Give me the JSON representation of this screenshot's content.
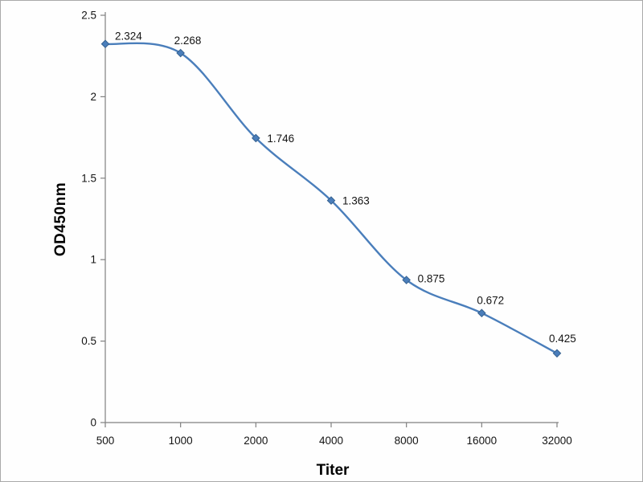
{
  "chart_data": {
    "type": "line",
    "title": "",
    "xlabel": "Titer",
    "ylabel": "OD450nm",
    "categories": [
      "500",
      "1000",
      "2000",
      "4000",
      "8000",
      "16000",
      "32000"
    ],
    "series": [
      {
        "name": "OD450nm",
        "values": [
          2.324,
          2.268,
          1.746,
          1.363,
          0.875,
          0.672,
          0.425
        ]
      }
    ],
    "point_labels": [
      "2.324",
      "2.268",
      "1.746",
      "1.363",
      "0.875",
      "0.672",
      "0.425"
    ],
    "ylim": [
      0,
      2.5
    ],
    "yticks": [
      "0",
      "0.5",
      "1",
      "1.5",
      "2",
      "2.5"
    ],
    "grid": false,
    "legend": "none",
    "line_style": "smooth",
    "marker": "diamond",
    "line_color": "#4a7ebb",
    "marker_color": "#4a7ebb",
    "marker_edge_color": "#36618f",
    "axis_color": "#808080",
    "text_color": "#141414"
  }
}
